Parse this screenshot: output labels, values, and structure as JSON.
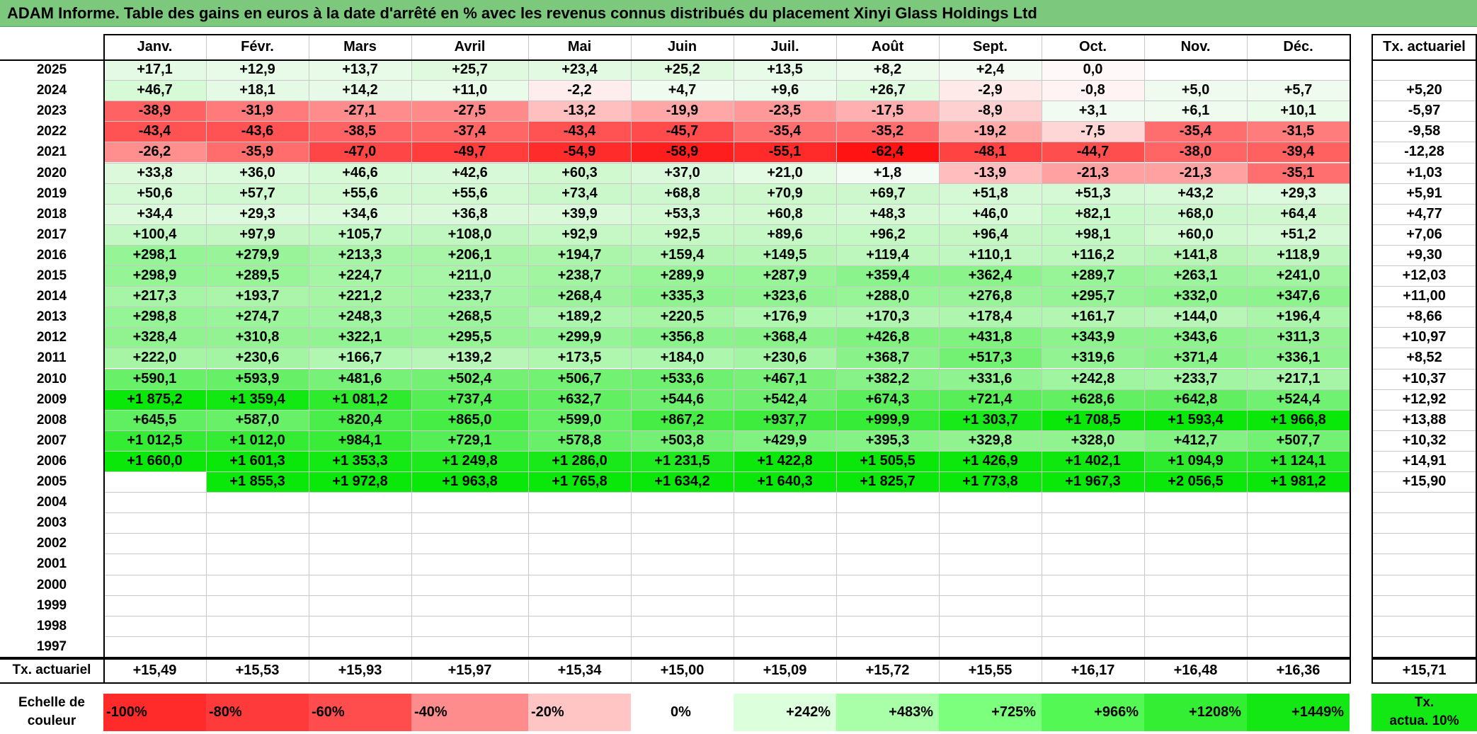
{
  "title": "ADAM Informe. Table des gains en euros à la date d'arrêté en % avec les revenus connus distribués du placement Xinyi Glass Holdings Ltd",
  "chart_data": {
    "type": "heatmap",
    "months": [
      "Janv.",
      "Févr.",
      "Mars",
      "Avril",
      "Mai",
      "Juin",
      "Juil.",
      "Août",
      "Sept.",
      "Oct.",
      "Nov.",
      "Déc."
    ],
    "annual_header": "Tx. actuariel",
    "rows": [
      {
        "year": "2025",
        "values": [
          "+17,1",
          "+12,9",
          "+13,7",
          "+25,7",
          "+23,4",
          "+25,2",
          "+13,5",
          "+8,2",
          "+2,4",
          "0,0",
          "",
          ""
        ],
        "annual": ""
      },
      {
        "year": "2024",
        "values": [
          "+46,7",
          "+18,1",
          "+14,2",
          "+11,0",
          "-2,2",
          "+4,7",
          "+9,6",
          "+26,7",
          "-2,9",
          "-0,8",
          "+5,0",
          "+5,7"
        ],
        "annual": "+5,20"
      },
      {
        "year": "2023",
        "values": [
          "-38,9",
          "-31,9",
          "-27,1",
          "-27,5",
          "-13,2",
          "-19,9",
          "-23,5",
          "-17,5",
          "-8,9",
          "+3,1",
          "+6,1",
          "+10,1"
        ],
        "annual": "-5,97"
      },
      {
        "year": "2022",
        "values": [
          "-43,4",
          "-43,6",
          "-38,5",
          "-37,4",
          "-43,4",
          "-45,7",
          "-35,4",
          "-35,2",
          "-19,2",
          "-7,5",
          "-35,4",
          "-31,5"
        ],
        "annual": "-9,58"
      },
      {
        "year": "2021",
        "values": [
          "-26,2",
          "-35,9",
          "-47,0",
          "-49,7",
          "-54,9",
          "-58,9",
          "-55,1",
          "-62,4",
          "-48,1",
          "-44,7",
          "-38,0",
          "-39,4"
        ],
        "annual": "-12,28"
      },
      {
        "year": "2020",
        "values": [
          "+33,8",
          "+36,0",
          "+46,6",
          "+42,6",
          "+60,3",
          "+37,0",
          "+21,0",
          "+1,8",
          "-13,9",
          "-21,3",
          "-21,3",
          "-35,1"
        ],
        "annual": "+1,03"
      },
      {
        "year": "2019",
        "values": [
          "+50,6",
          "+57,7",
          "+55,6",
          "+55,6",
          "+73,4",
          "+68,8",
          "+70,9",
          "+69,7",
          "+51,8",
          "+51,3",
          "+43,2",
          "+29,3"
        ],
        "annual": "+5,91"
      },
      {
        "year": "2018",
        "values": [
          "+34,4",
          "+29,3",
          "+34,6",
          "+36,8",
          "+39,9",
          "+53,3",
          "+60,8",
          "+48,3",
          "+46,0",
          "+82,1",
          "+68,0",
          "+64,4"
        ],
        "annual": "+4,77"
      },
      {
        "year": "2017",
        "values": [
          "+100,4",
          "+97,9",
          "+105,7",
          "+108,0",
          "+92,9",
          "+92,5",
          "+89,6",
          "+96,2",
          "+96,4",
          "+98,1",
          "+60,0",
          "+51,2"
        ],
        "annual": "+7,06"
      },
      {
        "year": "2016",
        "values": [
          "+298,1",
          "+279,9",
          "+213,3",
          "+206,1",
          "+194,7",
          "+159,4",
          "+149,5",
          "+119,4",
          "+110,1",
          "+116,2",
          "+141,8",
          "+118,9"
        ],
        "annual": "+9,30"
      },
      {
        "year": "2015",
        "values": [
          "+298,9",
          "+289,5",
          "+224,7",
          "+211,0",
          "+238,7",
          "+289,9",
          "+287,9",
          "+359,4",
          "+362,4",
          "+289,7",
          "+263,1",
          "+241,0"
        ],
        "annual": "+12,03"
      },
      {
        "year": "2014",
        "values": [
          "+217,3",
          "+193,7",
          "+221,2",
          "+233,7",
          "+268,4",
          "+335,3",
          "+323,6",
          "+288,0",
          "+276,8",
          "+295,7",
          "+332,0",
          "+347,6"
        ],
        "annual": "+11,00"
      },
      {
        "year": "2013",
        "values": [
          "+298,8",
          "+274,7",
          "+248,3",
          "+268,5",
          "+189,2",
          "+220,5",
          "+176,9",
          "+170,3",
          "+178,4",
          "+161,7",
          "+144,0",
          "+196,4"
        ],
        "annual": "+8,66"
      },
      {
        "year": "2012",
        "values": [
          "+328,4",
          "+310,8",
          "+322,1",
          "+295,5",
          "+299,9",
          "+356,8",
          "+368,4",
          "+426,8",
          "+431,8",
          "+343,9",
          "+343,6",
          "+311,3"
        ],
        "annual": "+10,97"
      },
      {
        "year": "2011",
        "values": [
          "+222,0",
          "+230,6",
          "+166,7",
          "+139,2",
          "+173,5",
          "+184,0",
          "+230,6",
          "+368,7",
          "+517,3",
          "+319,6",
          "+371,4",
          "+336,1"
        ],
        "annual": "+8,52"
      },
      {
        "year": "2010",
        "values": [
          "+590,1",
          "+593,9",
          "+481,6",
          "+502,4",
          "+506,7",
          "+533,6",
          "+467,1",
          "+382,2",
          "+331,6",
          "+242,8",
          "+233,7",
          "+217,1"
        ],
        "annual": "+10,37"
      },
      {
        "year": "2009",
        "values": [
          "+1 875,2",
          "+1 359,4",
          "+1 081,2",
          "+737,4",
          "+632,7",
          "+544,6",
          "+542,4",
          "+674,3",
          "+721,4",
          "+628,6",
          "+642,8",
          "+524,4"
        ],
        "annual": "+12,92"
      },
      {
        "year": "2008",
        "values": [
          "+645,5",
          "+587,0",
          "+820,4",
          "+865,0",
          "+599,0",
          "+867,2",
          "+937,7",
          "+999,9",
          "+1 303,7",
          "+1 708,5",
          "+1 593,4",
          "+1 966,8"
        ],
        "annual": "+13,88"
      },
      {
        "year": "2007",
        "values": [
          "+1 012,5",
          "+1 012,0",
          "+984,1",
          "+729,1",
          "+578,8",
          "+503,8",
          "+429,9",
          "+395,3",
          "+329,8",
          "+328,0",
          "+412,7",
          "+507,7"
        ],
        "annual": "+10,32"
      },
      {
        "year": "2006",
        "values": [
          "+1 660,0",
          "+1 601,3",
          "+1 353,3",
          "+1 249,8",
          "+1 286,0",
          "+1 231,5",
          "+1 422,8",
          "+1 505,5",
          "+1 426,9",
          "+1 402,1",
          "+1 094,9",
          "+1 124,1"
        ],
        "annual": "+14,91"
      },
      {
        "year": "2005",
        "values": [
          "",
          "+1 855,3",
          "+1 972,8",
          "+1 963,8",
          "+1 765,8",
          "+1 634,2",
          "+1 640,3",
          "+1 825,7",
          "+1 773,8",
          "+1 967,3",
          "+2 056,5",
          "+1 981,2"
        ],
        "annual": "+15,90"
      },
      {
        "year": "2004",
        "values": [
          "",
          "",
          "",
          "",
          "",
          "",
          "",
          "",
          "",
          "",
          "",
          ""
        ],
        "annual": ""
      },
      {
        "year": "2003",
        "values": [
          "",
          "",
          "",
          "",
          "",
          "",
          "",
          "",
          "",
          "",
          "",
          ""
        ],
        "annual": ""
      },
      {
        "year": "2002",
        "values": [
          "",
          "",
          "",
          "",
          "",
          "",
          "",
          "",
          "",
          "",
          "",
          ""
        ],
        "annual": ""
      },
      {
        "year": "2001",
        "values": [
          "",
          "",
          "",
          "",
          "",
          "",
          "",
          "",
          "",
          "",
          "",
          ""
        ],
        "annual": ""
      },
      {
        "year": "2000",
        "values": [
          "",
          "",
          "",
          "",
          "",
          "",
          "",
          "",
          "",
          "",
          "",
          ""
        ],
        "annual": ""
      },
      {
        "year": "1999",
        "values": [
          "",
          "",
          "",
          "",
          "",
          "",
          "",
          "",
          "",
          "",
          "",
          ""
        ],
        "annual": ""
      },
      {
        "year": "1998",
        "values": [
          "",
          "",
          "",
          "",
          "",
          "",
          "",
          "",
          "",
          "",
          "",
          ""
        ],
        "annual": ""
      },
      {
        "year": "1997",
        "values": [
          "",
          "",
          "",
          "",
          "",
          "",
          "",
          "",
          "",
          "",
          "",
          ""
        ],
        "annual": ""
      }
    ],
    "footer_row": {
      "label": "Tx. actuariel",
      "values": [
        "+15,49",
        "+15,53",
        "+15,93",
        "+15,97",
        "+15,34",
        "+15,00",
        "+15,09",
        "+15,72",
        "+15,55",
        "+16,17",
        "+16,48",
        "+16,36"
      ],
      "annual": "+15,71"
    },
    "legend": {
      "label_line1": "Echelle de",
      "label_line2": "couleur",
      "steps": [
        {
          "label": "-100%",
          "color": "#ff2a2a",
          "align": "left"
        },
        {
          "label": "-80%",
          "color": "#ff3a3a",
          "align": "left"
        },
        {
          "label": "-60%",
          "color": "#ff4c4c",
          "align": "left"
        },
        {
          "label": "-40%",
          "color": "#ff8c8c",
          "align": "left"
        },
        {
          "label": "-20%",
          "color": "#ffc4c4",
          "align": "left"
        },
        {
          "label": "0%",
          "color": "#ffffff",
          "align": "center"
        },
        {
          "label": "+242%",
          "color": "#dcffdc",
          "align": "right"
        },
        {
          "label": "+483%",
          "color": "#a8ffa8",
          "align": "right"
        },
        {
          "label": "+725%",
          "color": "#7cff7c",
          "align": "right"
        },
        {
          "label": "+966%",
          "color": "#54f854",
          "align": "right"
        },
        {
          "label": "+1208%",
          "color": "#34ee34",
          "align": "right"
        },
        {
          "label": "+1449%",
          "color": "#14e814",
          "align": "right"
        }
      ],
      "annual_label_line1": "Tx.",
      "annual_label_line2": "actua. 10%",
      "annual_color": "#14e814"
    }
  }
}
